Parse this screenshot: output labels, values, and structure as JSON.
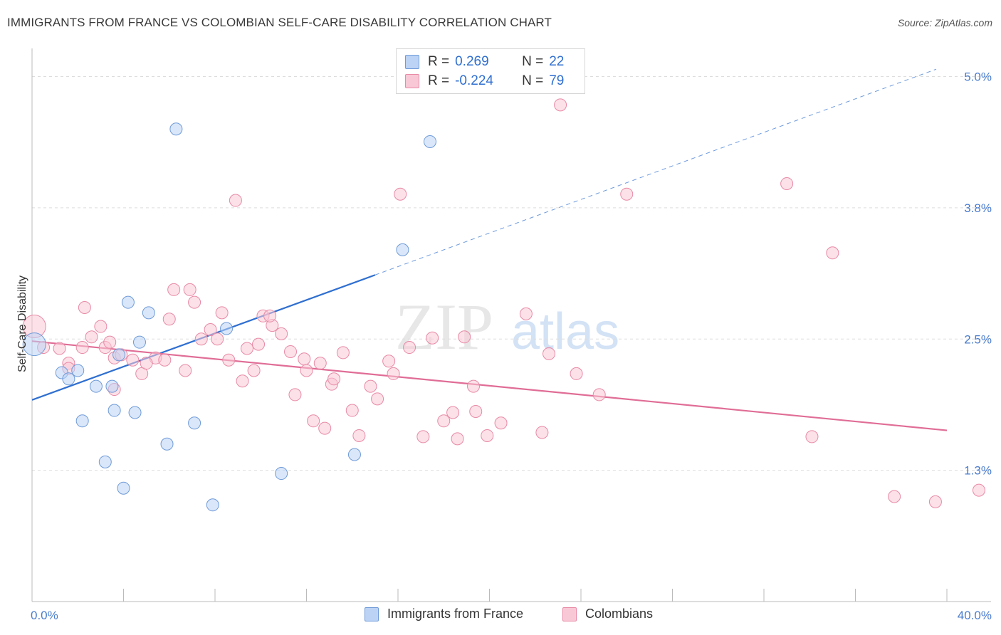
{
  "header": {
    "title": "IMMIGRANTS FROM FRANCE VS COLOMBIAN SELF-CARE DISABILITY CORRELATION CHART",
    "source": "Source: ZipAtlas.com"
  },
  "legend": {
    "series1": {
      "r_label": "R =",
      "r_value": "0.269",
      "n_label": "N =",
      "n_value": "22"
    },
    "series2": {
      "r_label": "R =",
      "r_value": "-0.224",
      "n_label": "N =",
      "n_value": "79"
    }
  },
  "bottom_legend": {
    "series1": "Immigrants from France",
    "series2": "Colombians"
  },
  "watermark": {
    "zip": "ZIP",
    "atlas": "atlas"
  },
  "colors": {
    "blue_fill": "#bcd3f5",
    "blue_stroke": "#6f9bd8",
    "blue_line": "#2f6fd0",
    "pink_fill": "#f9c8d6",
    "pink_stroke": "#e88aa6",
    "pink_line": "#e06d96",
    "tick_text": "#4a7ccc",
    "grid": "#dddddd"
  },
  "chart_data": {
    "type": "scatter",
    "title": "IMMIGRANTS FROM FRANCE VS COLOMBIAN SELF-CARE DISABILITY CORRELATION CHART",
    "xlabel": "",
    "ylabel": "Self-Care Disability",
    "xlim": [
      0,
      40
    ],
    "ylim": [
      0,
      5.2
    ],
    "x_tick_labels": [
      "0.0%",
      "40.0%"
    ],
    "y_ticks": [
      1.25,
      2.5,
      3.75,
      5.0
    ],
    "y_tick_labels": [
      "1.3%",
      "2.5%",
      "3.8%",
      "5.0%"
    ],
    "grid": true,
    "legend_position": "top-center",
    "series": [
      {
        "name": "Immigrants from France",
        "color": "#6f9bd8",
        "points": [
          [
            0.1,
            2.45
          ],
          [
            1.3,
            2.18
          ],
          [
            1.6,
            2.12
          ],
          [
            2.2,
            1.72
          ],
          [
            2.8,
            2.05
          ],
          [
            3.5,
            2.05
          ],
          [
            2.0,
            2.2
          ],
          [
            3.2,
            1.33
          ],
          [
            3.8,
            2.35
          ],
          [
            4.2,
            2.85
          ],
          [
            4.7,
            2.47
          ],
          [
            3.6,
            1.82
          ],
          [
            4.5,
            1.8
          ],
          [
            5.1,
            2.75
          ],
          [
            5.9,
            1.5
          ],
          [
            6.3,
            4.5
          ],
          [
            4.0,
            1.08
          ],
          [
            7.1,
            1.7
          ],
          [
            7.9,
            0.92
          ],
          [
            16.2,
            3.35
          ],
          [
            17.4,
            4.38
          ],
          [
            10.9,
            1.22
          ]
        ],
        "extra_points": [
          [
            8.5,
            2.6
          ],
          [
            14.1,
            1.4
          ]
        ],
        "trend": {
          "x": [
            0,
            15.0
          ],
          "y": [
            1.92,
            3.11
          ],
          "extended_to": [
            40,
            5.07
          ]
        }
      },
      {
        "name": "Colombians",
        "color": "#e88aa6",
        "points": [
          [
            0.1,
            2.62
          ],
          [
            0.5,
            2.42
          ],
          [
            1.6,
            2.27
          ],
          [
            1.2,
            2.41
          ],
          [
            2.2,
            2.42
          ],
          [
            1.6,
            2.22
          ],
          [
            2.3,
            2.8
          ],
          [
            2.6,
            2.52
          ],
          [
            3.0,
            2.62
          ],
          [
            3.2,
            2.42
          ],
          [
            3.4,
            2.47
          ],
          [
            3.6,
            2.32
          ],
          [
            4.4,
            2.3
          ],
          [
            4.8,
            2.17
          ],
          [
            5.4,
            2.32
          ],
          [
            6.2,
            2.97
          ],
          [
            6.0,
            2.69
          ],
          [
            5.0,
            2.27
          ],
          [
            3.6,
            2.02
          ],
          [
            3.9,
            2.35
          ],
          [
            6.7,
            2.2
          ],
          [
            6.9,
            2.97
          ],
          [
            7.1,
            2.85
          ],
          [
            7.4,
            2.5
          ],
          [
            7.8,
            2.59
          ],
          [
            8.1,
            2.5
          ],
          [
            8.3,
            2.75
          ],
          [
            8.6,
            2.3
          ],
          [
            8.9,
            3.82
          ],
          [
            9.2,
            2.1
          ],
          [
            9.4,
            2.41
          ],
          [
            9.7,
            2.2
          ],
          [
            9.9,
            2.45
          ],
          [
            10.1,
            2.72
          ],
          [
            10.5,
            2.63
          ],
          [
            10.9,
            2.55
          ],
          [
            11.3,
            2.38
          ],
          [
            11.5,
            1.97
          ],
          [
            11.9,
            2.31
          ],
          [
            12.0,
            2.2
          ],
          [
            12.3,
            1.72
          ],
          [
            12.6,
            2.27
          ],
          [
            13.1,
            2.07
          ],
          [
            13.2,
            2.12
          ],
          [
            13.6,
            2.37
          ],
          [
            14.0,
            1.82
          ],
          [
            14.3,
            1.58
          ],
          [
            14.8,
            2.05
          ],
          [
            15.1,
            1.93
          ],
          [
            15.6,
            2.29
          ],
          [
            16.1,
            3.88
          ],
          [
            16.5,
            2.42
          ],
          [
            17.1,
            1.57
          ],
          [
            17.5,
            2.51
          ],
          [
            18.0,
            1.72
          ],
          [
            18.4,
            1.8
          ],
          [
            18.6,
            1.55
          ],
          [
            18.9,
            2.52
          ],
          [
            19.3,
            2.05
          ],
          [
            19.4,
            1.81
          ],
          [
            19.9,
            1.58
          ],
          [
            20.5,
            1.7
          ],
          [
            21.6,
            2.74
          ],
          [
            22.3,
            1.61
          ],
          [
            22.6,
            2.36
          ],
          [
            23.1,
            4.73
          ],
          [
            23.8,
            2.17
          ],
          [
            24.8,
            1.97
          ],
          [
            26.0,
            3.88
          ],
          [
            33.0,
            3.98
          ],
          [
            34.1,
            1.57
          ],
          [
            35.0,
            3.32
          ],
          [
            37.7,
            1.0
          ],
          [
            39.5,
            0.95
          ],
          [
            41.4,
            1.06
          ],
          [
            15.8,
            2.17
          ],
          [
            10.4,
            2.72
          ],
          [
            12.8,
            1.65
          ],
          [
            5.8,
            2.3
          ]
        ],
        "trend": {
          "x": [
            0,
            40
          ],
          "y": [
            2.48,
            1.63
          ]
        }
      }
    ]
  }
}
